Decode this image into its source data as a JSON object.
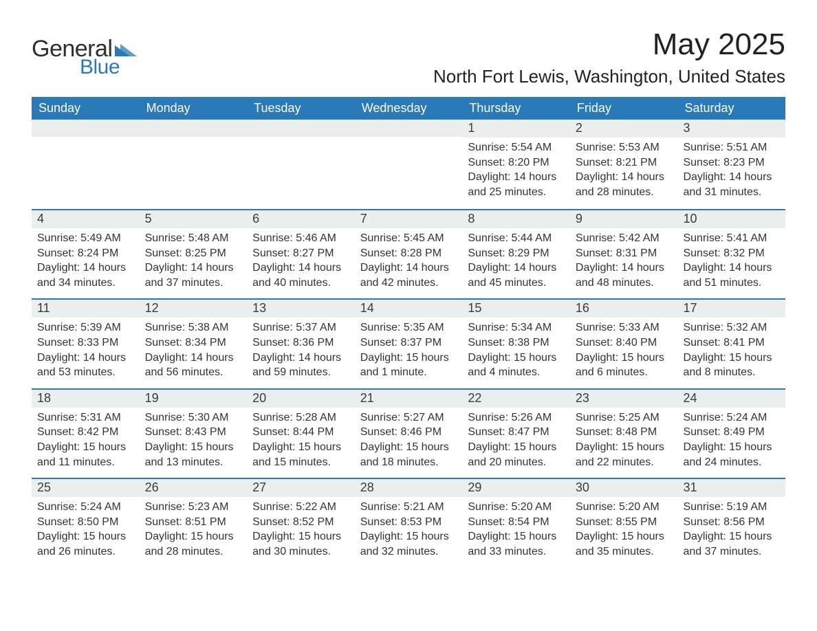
{
  "brand": {
    "word1": "General",
    "word2": "Blue",
    "tri_color": "#2a7ab9"
  },
  "title": {
    "month": "May 2025",
    "location": "North Fort Lewis, Washington, United States"
  },
  "colors": {
    "header_bg": "#2a7ab9",
    "header_text": "#ffffff",
    "daynum_bg": "#eceeee",
    "week_border": "#2a7ab9",
    "body_text": "#333333",
    "page_bg": "#ffffff"
  },
  "typography": {
    "month_title_fontsize": 44,
    "location_fontsize": 26,
    "dow_fontsize": 18,
    "daynum_fontsize": 18,
    "body_fontsize": 16
  },
  "days_of_week": [
    "Sunday",
    "Monday",
    "Tuesday",
    "Wednesday",
    "Thursday",
    "Friday",
    "Saturday"
  ],
  "weeks": [
    [
      {
        "empty": true
      },
      {
        "empty": true
      },
      {
        "empty": true
      },
      {
        "empty": true
      },
      {
        "n": "1",
        "sunrise": "Sunrise: 5:54 AM",
        "sunset": "Sunset: 8:20 PM",
        "daylight": "Daylight: 14 hours and 25 minutes."
      },
      {
        "n": "2",
        "sunrise": "Sunrise: 5:53 AM",
        "sunset": "Sunset: 8:21 PM",
        "daylight": "Daylight: 14 hours and 28 minutes."
      },
      {
        "n": "3",
        "sunrise": "Sunrise: 5:51 AM",
        "sunset": "Sunset: 8:23 PM",
        "daylight": "Daylight: 14 hours and 31 minutes."
      }
    ],
    [
      {
        "n": "4",
        "sunrise": "Sunrise: 5:49 AM",
        "sunset": "Sunset: 8:24 PM",
        "daylight": "Daylight: 14 hours and 34 minutes."
      },
      {
        "n": "5",
        "sunrise": "Sunrise: 5:48 AM",
        "sunset": "Sunset: 8:25 PM",
        "daylight": "Daylight: 14 hours and 37 minutes."
      },
      {
        "n": "6",
        "sunrise": "Sunrise: 5:46 AM",
        "sunset": "Sunset: 8:27 PM",
        "daylight": "Daylight: 14 hours and 40 minutes."
      },
      {
        "n": "7",
        "sunrise": "Sunrise: 5:45 AM",
        "sunset": "Sunset: 8:28 PM",
        "daylight": "Daylight: 14 hours and 42 minutes."
      },
      {
        "n": "8",
        "sunrise": "Sunrise: 5:44 AM",
        "sunset": "Sunset: 8:29 PM",
        "daylight": "Daylight: 14 hours and 45 minutes."
      },
      {
        "n": "9",
        "sunrise": "Sunrise: 5:42 AM",
        "sunset": "Sunset: 8:31 PM",
        "daylight": "Daylight: 14 hours and 48 minutes."
      },
      {
        "n": "10",
        "sunrise": "Sunrise: 5:41 AM",
        "sunset": "Sunset: 8:32 PM",
        "daylight": "Daylight: 14 hours and 51 minutes."
      }
    ],
    [
      {
        "n": "11",
        "sunrise": "Sunrise: 5:39 AM",
        "sunset": "Sunset: 8:33 PM",
        "daylight": "Daylight: 14 hours and 53 minutes."
      },
      {
        "n": "12",
        "sunrise": "Sunrise: 5:38 AM",
        "sunset": "Sunset: 8:34 PM",
        "daylight": "Daylight: 14 hours and 56 minutes."
      },
      {
        "n": "13",
        "sunrise": "Sunrise: 5:37 AM",
        "sunset": "Sunset: 8:36 PM",
        "daylight": "Daylight: 14 hours and 59 minutes."
      },
      {
        "n": "14",
        "sunrise": "Sunrise: 5:35 AM",
        "sunset": "Sunset: 8:37 PM",
        "daylight": "Daylight: 15 hours and 1 minute."
      },
      {
        "n": "15",
        "sunrise": "Sunrise: 5:34 AM",
        "sunset": "Sunset: 8:38 PM",
        "daylight": "Daylight: 15 hours and 4 minutes."
      },
      {
        "n": "16",
        "sunrise": "Sunrise: 5:33 AM",
        "sunset": "Sunset: 8:40 PM",
        "daylight": "Daylight: 15 hours and 6 minutes."
      },
      {
        "n": "17",
        "sunrise": "Sunrise: 5:32 AM",
        "sunset": "Sunset: 8:41 PM",
        "daylight": "Daylight: 15 hours and 8 minutes."
      }
    ],
    [
      {
        "n": "18",
        "sunrise": "Sunrise: 5:31 AM",
        "sunset": "Sunset: 8:42 PM",
        "daylight": "Daylight: 15 hours and 11 minutes."
      },
      {
        "n": "19",
        "sunrise": "Sunrise: 5:30 AM",
        "sunset": "Sunset: 8:43 PM",
        "daylight": "Daylight: 15 hours and 13 minutes."
      },
      {
        "n": "20",
        "sunrise": "Sunrise: 5:28 AM",
        "sunset": "Sunset: 8:44 PM",
        "daylight": "Daylight: 15 hours and 15 minutes."
      },
      {
        "n": "21",
        "sunrise": "Sunrise: 5:27 AM",
        "sunset": "Sunset: 8:46 PM",
        "daylight": "Daylight: 15 hours and 18 minutes."
      },
      {
        "n": "22",
        "sunrise": "Sunrise: 5:26 AM",
        "sunset": "Sunset: 8:47 PM",
        "daylight": "Daylight: 15 hours and 20 minutes."
      },
      {
        "n": "23",
        "sunrise": "Sunrise: 5:25 AM",
        "sunset": "Sunset: 8:48 PM",
        "daylight": "Daylight: 15 hours and 22 minutes."
      },
      {
        "n": "24",
        "sunrise": "Sunrise: 5:24 AM",
        "sunset": "Sunset: 8:49 PM",
        "daylight": "Daylight: 15 hours and 24 minutes."
      }
    ],
    [
      {
        "n": "25",
        "sunrise": "Sunrise: 5:24 AM",
        "sunset": "Sunset: 8:50 PM",
        "daylight": "Daylight: 15 hours and 26 minutes."
      },
      {
        "n": "26",
        "sunrise": "Sunrise: 5:23 AM",
        "sunset": "Sunset: 8:51 PM",
        "daylight": "Daylight: 15 hours and 28 minutes."
      },
      {
        "n": "27",
        "sunrise": "Sunrise: 5:22 AM",
        "sunset": "Sunset: 8:52 PM",
        "daylight": "Daylight: 15 hours and 30 minutes."
      },
      {
        "n": "28",
        "sunrise": "Sunrise: 5:21 AM",
        "sunset": "Sunset: 8:53 PM",
        "daylight": "Daylight: 15 hours and 32 minutes."
      },
      {
        "n": "29",
        "sunrise": "Sunrise: 5:20 AM",
        "sunset": "Sunset: 8:54 PM",
        "daylight": "Daylight: 15 hours and 33 minutes."
      },
      {
        "n": "30",
        "sunrise": "Sunrise: 5:20 AM",
        "sunset": "Sunset: 8:55 PM",
        "daylight": "Daylight: 15 hours and 35 minutes."
      },
      {
        "n": "31",
        "sunrise": "Sunrise: 5:19 AM",
        "sunset": "Sunset: 8:56 PM",
        "daylight": "Daylight: 15 hours and 37 minutes."
      }
    ]
  ]
}
